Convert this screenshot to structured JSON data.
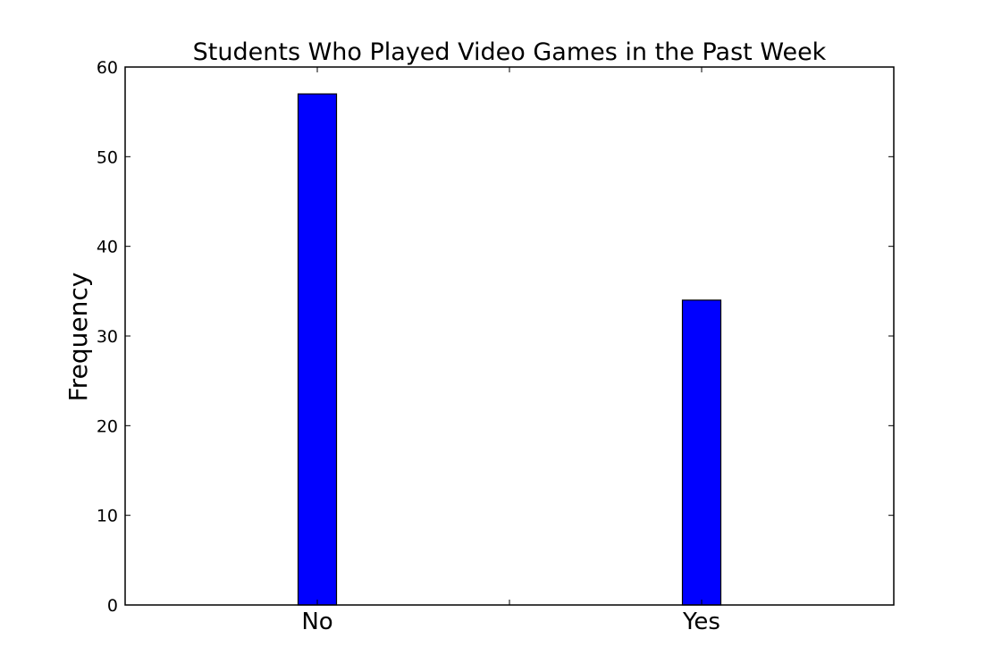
{
  "chart_data": {
    "type": "bar",
    "title": "Students Who Played Video Games in the Past Week",
    "xlabel": "",
    "ylabel": "Frequency",
    "categories": [
      "No",
      "Yes"
    ],
    "values": [
      57,
      34
    ],
    "ylim": [
      0,
      60
    ],
    "yticks": [
      0,
      10,
      20,
      30,
      40,
      50,
      60
    ],
    "ytick_labels": [
      "0",
      "10",
      "20",
      "30",
      "40",
      "50",
      "60"
    ],
    "grid": false,
    "bar_color": "#0000ff",
    "edge_color": "#000000"
  }
}
